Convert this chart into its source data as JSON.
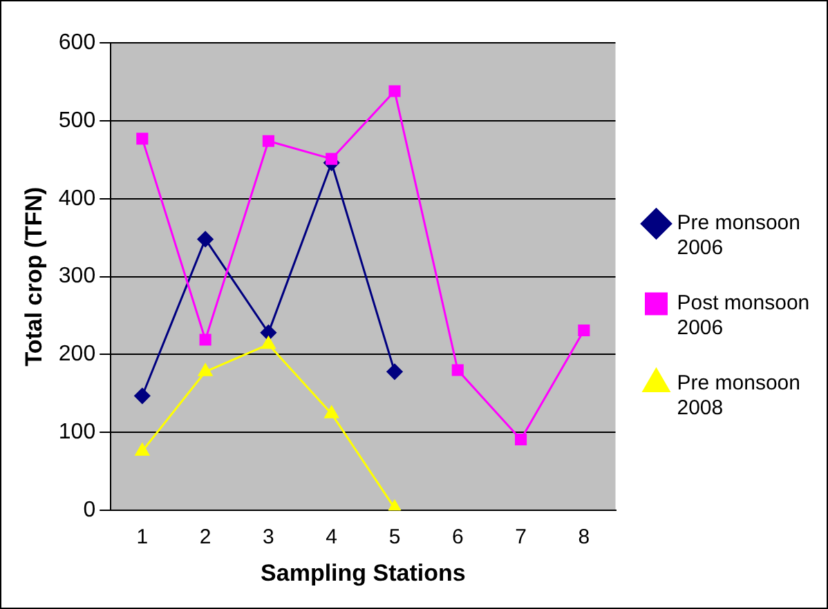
{
  "chart_data": {
    "type": "line",
    "xlabel": "Sampling Stations",
    "ylabel": "Total crop (TFN)",
    "categories": [
      "1",
      "2",
      "3",
      "4",
      "5",
      "6",
      "7",
      "8"
    ],
    "series": [
      {
        "name": "Pre monsoon 2006",
        "color": "#000080",
        "marker": "diamond",
        "values": [
          147,
          348,
          228,
          446,
          178,
          null,
          null,
          null
        ]
      },
      {
        "name": "Post monsoon 2006",
        "color": "#ff00ff",
        "marker": "square",
        "values": [
          477,
          219,
          474,
          451,
          538,
          180,
          91,
          231
        ]
      },
      {
        "name": "Pre monsoon 2008",
        "color": "#ffff00",
        "marker": "triangle",
        "values": [
          76,
          178,
          213,
          124,
          3,
          null,
          null,
          null
        ]
      }
    ],
    "ylim": [
      0,
      600
    ],
    "yticks": [
      0,
      100,
      200,
      300,
      400,
      500,
      600
    ],
    "grid": "y",
    "legend": "right"
  }
}
